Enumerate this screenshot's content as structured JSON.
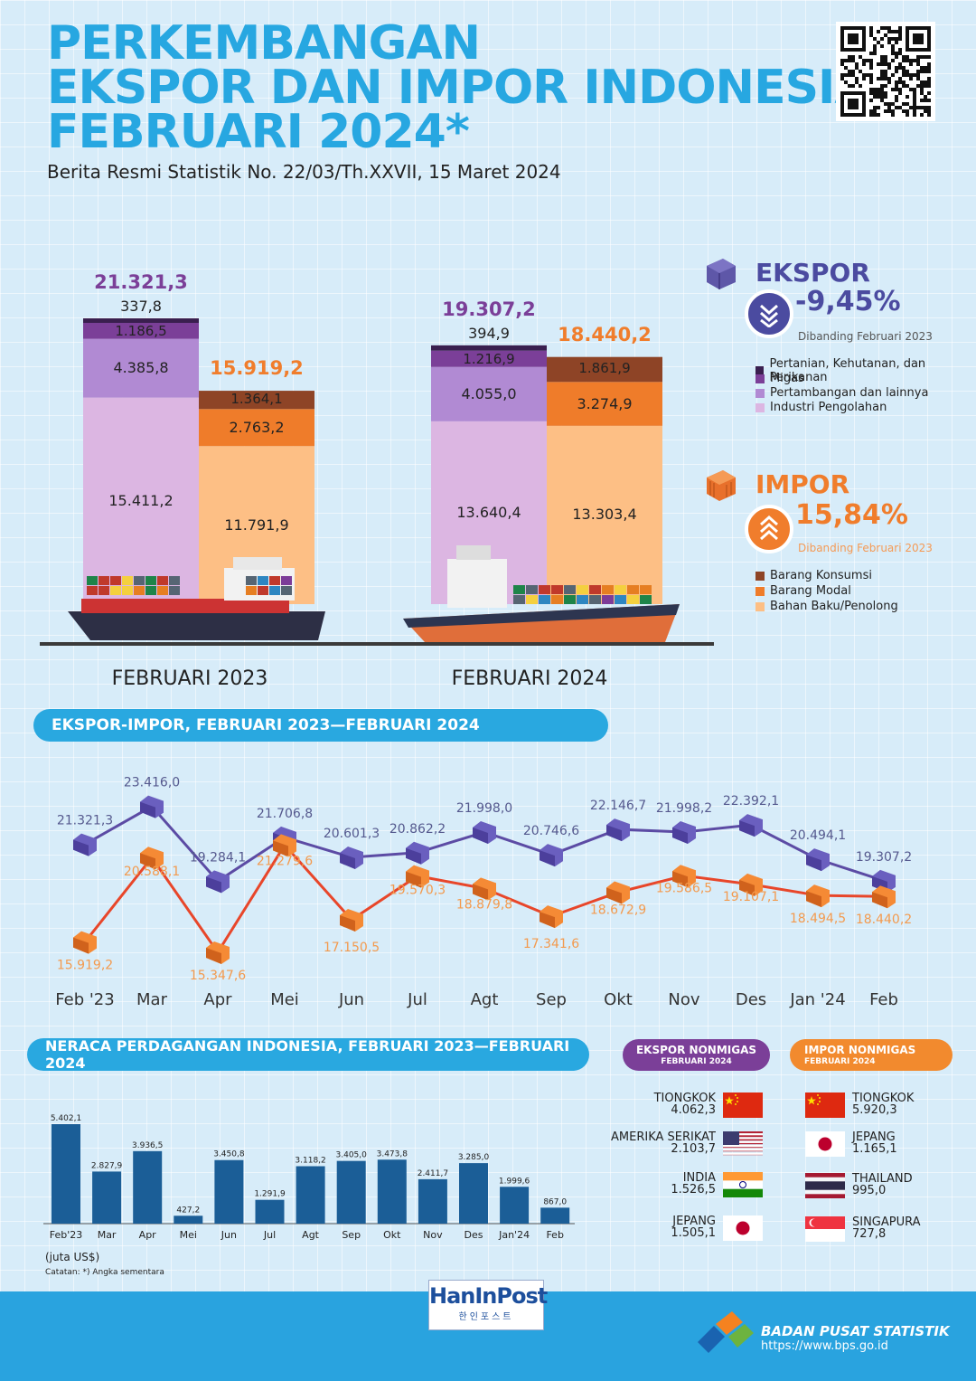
{
  "title": {
    "line1": "PERKEMBANGAN",
    "line2": "EKSPOR DAN IMPOR INDONESIA",
    "line3": "FEBRUARI 2024*",
    "subtitle": "Berita Resmi Statistik No. 22/03/Th.XXVII, 15 Maret 2024"
  },
  "colors": {
    "title": "#27a7e1",
    "ekspor": "#7b3f98",
    "impor": "#f07d2c",
    "pertanian": "#3a1f4f",
    "migas": "#7b3f98",
    "pertambangan": "#b18ad3",
    "industri": "#dcb6e2",
    "barang_konsumsi": "#8e4426",
    "barang_modal": "#ef7c2a",
    "bahan_baku": "#fdbf85",
    "bar_neraca": "#1b5e97",
    "accent_blue": "#29a8e0"
  },
  "ekspor": {
    "label": "EKSPOR",
    "change": "-9,45%",
    "note": "Dibanding Februari 2023",
    "legend": [
      "Pertanian, Kehutanan, dan Perikanan",
      "Migas",
      "Pertambangan dan lainnya",
      "Industri Pengolahan"
    ]
  },
  "impor": {
    "label": "IMPOR",
    "change": "15,84%",
    "note": "Dibanding Februari 2023",
    "legend": [
      "Barang Konsumsi",
      "Barang Modal",
      "Bahan Baku/Penolong"
    ]
  },
  "sections": {
    "line_header": "EKSPOR-IMPOR, FEBRUARI 2023—FEBRUARI 2024",
    "neraca_header": "NERACA PERDAGANGAN INDONESIA, FEBRUARI 2023—FEBRUARI 2024",
    "ekspor_pill_1": "EKSPOR NONMIGAS",
    "ekspor_pill_2": "FEBRUARI 2024",
    "impor_pill_1": "IMPOR NONMIGAS",
    "impor_pill_2": "FEBRUARI 2024"
  },
  "chart_data": [
    {
      "type": "bar",
      "stacked": true,
      "categories": [
        "FEBRUARI 2023",
        "FEBRUARI 2024"
      ],
      "ekspor": {
        "totals": [
          "21.321,3",
          "19.307,2"
        ],
        "stack": [
          {
            "name": "Industri Pengolahan",
            "values": [
              15411.2,
              13640.4
            ],
            "labels": [
              "15.411,2",
              "13.640,4"
            ]
          },
          {
            "name": "Pertambangan dan lainnya",
            "values": [
              4385.8,
              4055.0
            ],
            "labels": [
              "4.385,8",
              "4.055,0"
            ]
          },
          {
            "name": "Migas",
            "values": [
              1186.5,
              1216.9
            ],
            "labels": [
              "1.186,5",
              "1.216,9"
            ]
          },
          {
            "name": "Pertanian, Kehutanan, dan Perikanan",
            "values": [
              337.8,
              394.9
            ],
            "labels": [
              "337,8",
              "394,9"
            ]
          }
        ]
      },
      "impor": {
        "totals": [
          "15.919,2",
          "18.440,2"
        ],
        "stack": [
          {
            "name": "Bahan Baku/Penolong",
            "values": [
              11791.9,
              13303.4
            ],
            "labels": [
              "11.791,9",
              "13.303,4"
            ]
          },
          {
            "name": "Barang Modal",
            "values": [
              2763.2,
              3274.9
            ],
            "labels": [
              "2.763,2",
              "3.274,9"
            ]
          },
          {
            "name": "Barang Konsumsi",
            "values": [
              1364.1,
              1861.9
            ],
            "labels": [
              "1.364,1",
              "1.861,9"
            ]
          }
        ]
      }
    },
    {
      "type": "line",
      "categories": [
        "Feb '23",
        "Mar",
        "Apr",
        "Mei",
        "Jun",
        "Jul",
        "Agt",
        "Sep",
        "Okt",
        "Nov",
        "Des",
        "Jan '24",
        "Feb"
      ],
      "ylim": [
        14500,
        24500
      ],
      "series": [
        {
          "name": "EKSPOR",
          "values": [
            21321.3,
            23416.0,
            19284.1,
            21706.8,
            20601.3,
            20862.2,
            21998.0,
            20746.6,
            22146.7,
            21998.2,
            22392.1,
            20494.1,
            19307.2
          ],
          "labels": [
            "21.321,3",
            "23.416,0",
            "19.284,1",
            "21.706,8",
            "20.601,3",
            "20.862,2",
            "21.998,0",
            "20.746,6",
            "22.146,7",
            "21.998,2",
            "22.392,1",
            "20.494,1",
            "19.307,2"
          ]
        },
        {
          "name": "IMPOR",
          "values": [
            15919.2,
            20588.1,
            15347.6,
            21279.6,
            17150.5,
            19570.3,
            18879.8,
            17341.6,
            18672.9,
            19586.5,
            19107.1,
            18494.5,
            18440.2
          ],
          "labels": [
            "15.919,2",
            "20.588,1",
            "15.347,6",
            "21.279,6",
            "17.150,5",
            "19.570,3",
            "18.879,8",
            "17.341,6",
            "18.672,9",
            "19.586,5",
            "19.107,1",
            "18.494,5",
            "18.440,2"
          ]
        }
      ]
    },
    {
      "type": "bar",
      "categories": [
        "Feb'23",
        "Mar",
        "Apr",
        "Mei",
        "Jun",
        "Jul",
        "Agt",
        "Sep",
        "Okt",
        "Nov",
        "Des",
        "Jan'24",
        "Feb"
      ],
      "values": [
        5402.1,
        2827.9,
        3936.5,
        427.2,
        3450.8,
        1291.9,
        3118.2,
        3405.0,
        3473.8,
        2411.7,
        3285.0,
        1999.6,
        867.0
      ],
      "labels": [
        "5.402,1",
        "2.827,9",
        "3.936,5",
        "427,2",
        "3.450,8",
        "1.291,9",
        "3.118,2",
        "3.405,0",
        "3.473,8",
        "2.411,7",
        "3.285,0",
        "1.999,6",
        "867,0"
      ],
      "ylabel": "(juta US$)",
      "ylim": [
        0,
        5600
      ]
    }
  ],
  "unit_note": "(juta US$)",
  "footnote": "Catatan: *) Angka sementara",
  "ekspor_countries": [
    {
      "name": "TIONGKOK",
      "value": "4.062,3",
      "flag": "china"
    },
    {
      "name": "AMERIKA SERIKAT",
      "value": "2.103,7",
      "flag": "usa"
    },
    {
      "name": "INDIA",
      "value": "1.526,5",
      "flag": "india"
    },
    {
      "name": "JEPANG",
      "value": "1.505,1",
      "flag": "japan"
    }
  ],
  "impor_countries": [
    {
      "name": "TIONGKOK",
      "value": "5.920,3",
      "flag": "china"
    },
    {
      "name": "JEPANG",
      "value": "1.165,1",
      "flag": "japan"
    },
    {
      "name": "THAILAND",
      "value": "995,0",
      "flag": "thailand"
    },
    {
      "name": "SINGAPURA",
      "value": "727,8",
      "flag": "singapore"
    }
  ],
  "footer": {
    "org": "BADAN PUSAT STATISTIK",
    "url": "https://www.bps.go.id",
    "watermark_1": "HanInPost",
    "watermark_2": "한인포스트"
  }
}
